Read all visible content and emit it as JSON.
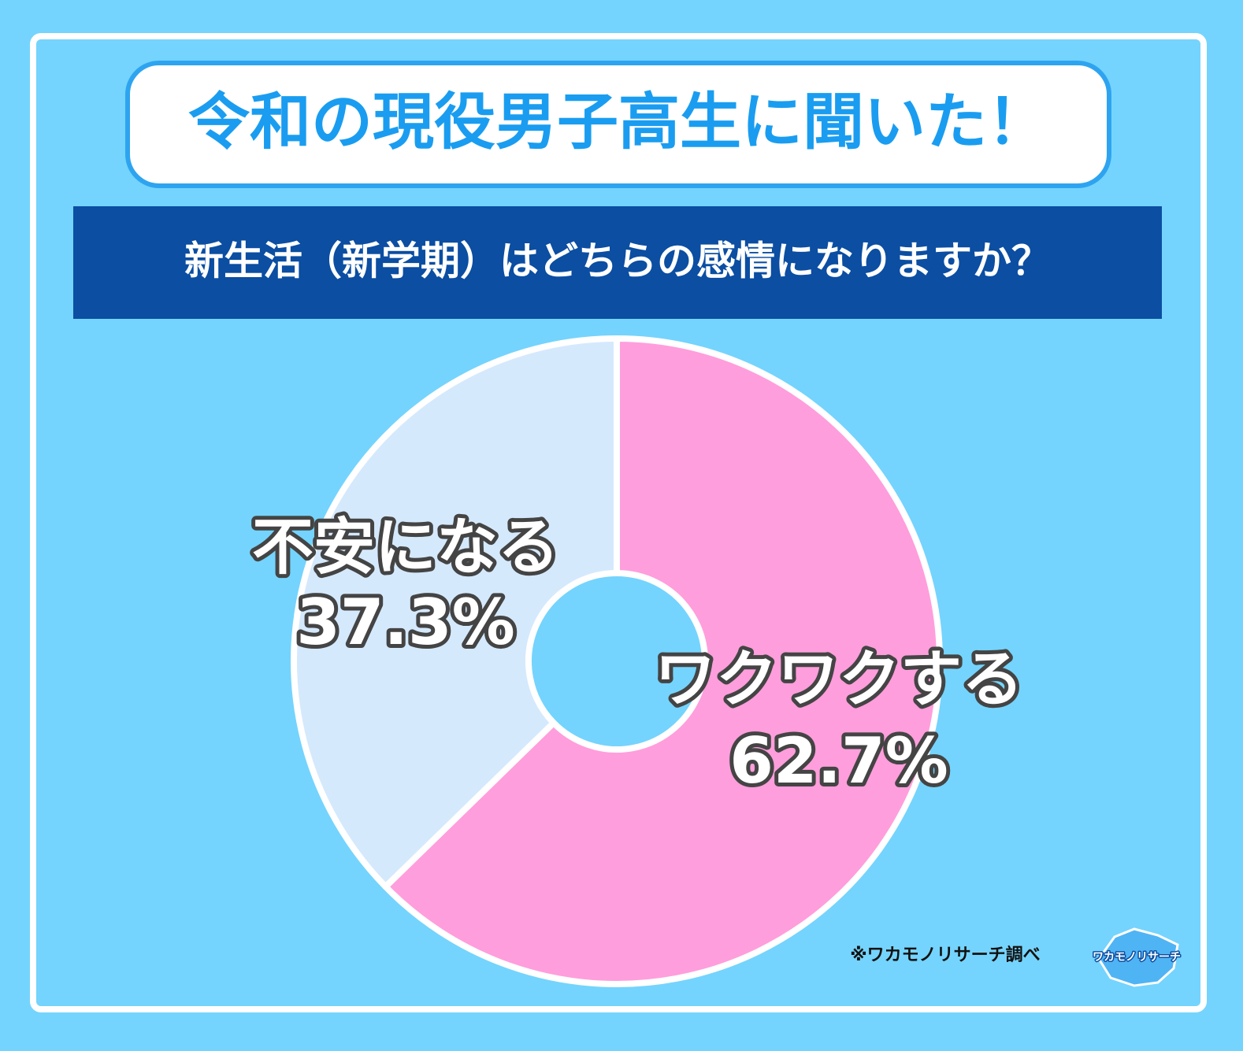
{
  "chart_data": {
    "type": "donut",
    "title": "令和の現役男子高生に聞いた！",
    "subtitle": "新生活（新学期）はどちらの感情になりますか？",
    "categories": [
      "ワクワクする",
      "不安になる"
    ],
    "values": [
      62.7,
      37.3
    ],
    "value_labels": [
      "62.7%",
      "37.3%"
    ],
    "colors": [
      "#ff9edc",
      "#d5e9fd"
    ],
    "source": "※ワカモノリサーチ調べ",
    "logo": "ワカモノリサーチ"
  }
}
